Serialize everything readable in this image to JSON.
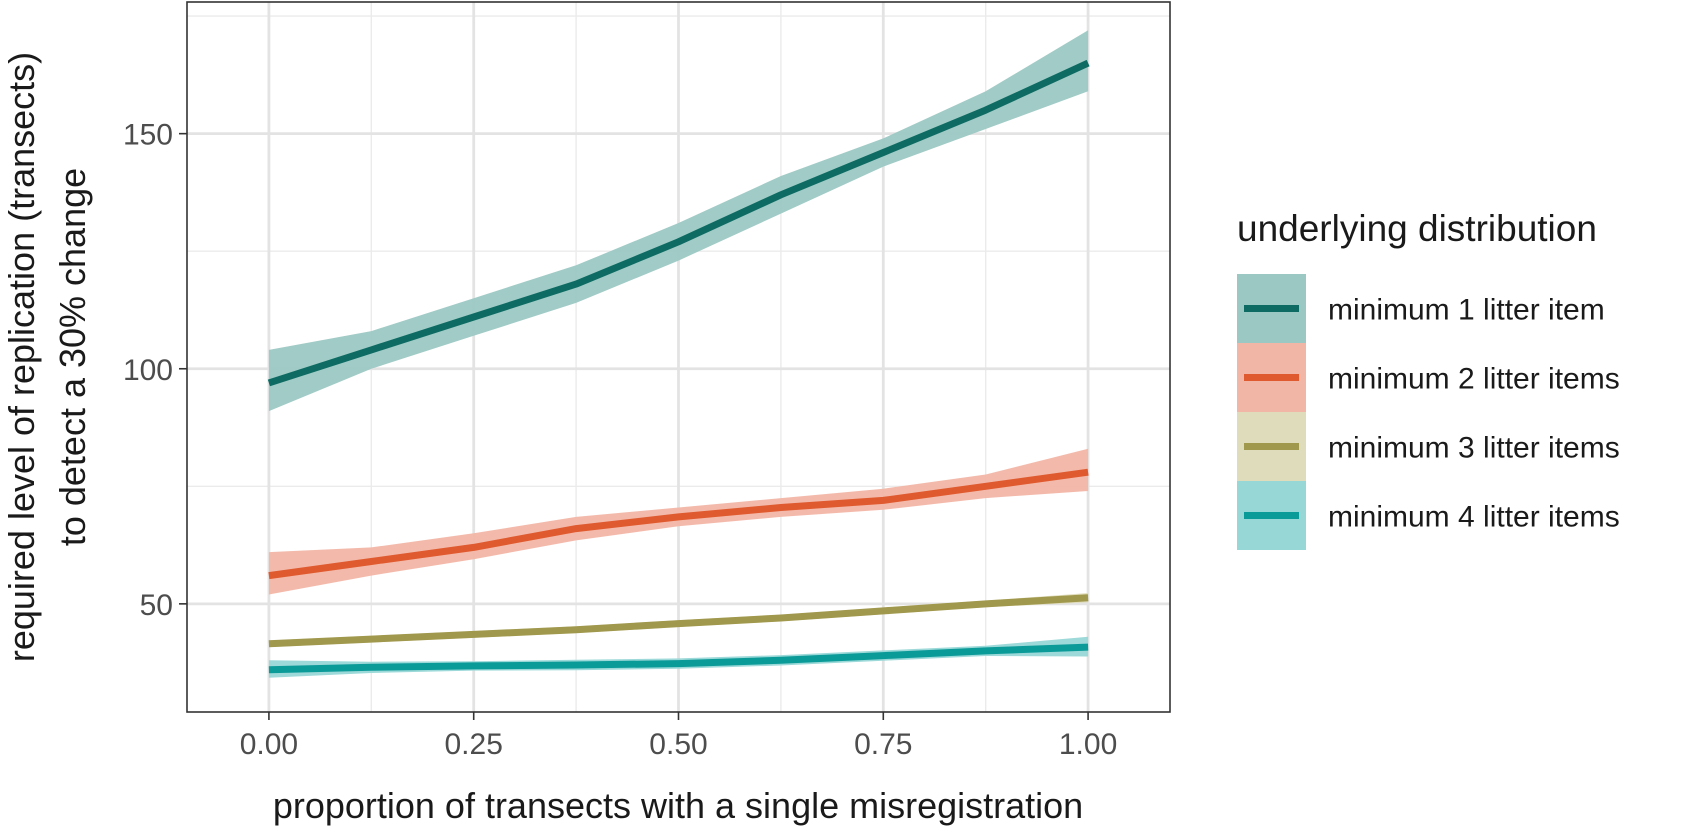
{
  "chart_data": {
    "type": "line",
    "title": "",
    "xlabel": "proportion of transects with a single misregistration",
    "ylabel_line1": "required level of replication (transects)",
    "ylabel_line2": "to detect a 30% change",
    "xlim": [
      -0.1,
      1.1
    ],
    "ylim": [
      27,
      178
    ],
    "x_ticks": [
      0.0,
      0.25,
      0.5,
      0.75,
      1.0
    ],
    "x_tick_labels": [
      "0.00",
      "0.25",
      "0.50",
      "0.75",
      "1.00"
    ],
    "y_ticks": [
      50,
      100,
      150
    ],
    "y_tick_labels": [
      "50",
      "100",
      "150"
    ],
    "grid": true,
    "legend_title": "underlying distribution",
    "legend_position": "right",
    "x": [
      0.0,
      0.125,
      0.25,
      0.375,
      0.5,
      0.625,
      0.75,
      0.875,
      1.0
    ],
    "series": [
      {
        "name": "minimum 1 litter item",
        "color": "#0d6b63",
        "fill": "#9cc8c3",
        "values": [
          97,
          104,
          111,
          118,
          127,
          137,
          146,
          155,
          165
        ],
        "lower": [
          91,
          100,
          107,
          114,
          123,
          133,
          143,
          151,
          159
        ],
        "upper": [
          104,
          108,
          115,
          122,
          131,
          141,
          149,
          159,
          172
        ]
      },
      {
        "name": "minimum 2 litter items",
        "color": "#e05a2f",
        "fill": "#f2b6a6",
        "values": [
          56,
          59,
          62,
          66,
          68.5,
          70.5,
          72,
          75,
          78
        ],
        "lower": [
          52,
          56,
          59.5,
          63.5,
          66.5,
          68.5,
          70,
          72.5,
          74
        ],
        "upper": [
          61,
          62,
          65,
          68.5,
          70.5,
          72.5,
          74.5,
          77.5,
          83
        ]
      },
      {
        "name": "minimum 3 litter items",
        "color": "#a0984c",
        "fill": "#dfdcbb",
        "values": [
          41.5,
          42.5,
          43.5,
          44.5,
          45.8,
          47,
          48.5,
          50,
          51.3
        ],
        "lower": [
          40.8,
          41.8,
          42.8,
          43.8,
          45.1,
          46.3,
          47.8,
          49.3,
          50.3
        ],
        "upper": [
          42.2,
          43.2,
          44.2,
          45.2,
          46.5,
          47.7,
          49.2,
          50.7,
          52.3
        ]
      },
      {
        "name": "minimum 4 litter items",
        "color": "#0a9a98",
        "fill": "#97d7d6",
        "values": [
          36,
          36.5,
          36.8,
          37,
          37.3,
          38,
          39,
          40,
          40.8
        ],
        "lower": [
          34.3,
          35.3,
          35.8,
          35.9,
          36.2,
          36.9,
          37.9,
          38.9,
          38.8
        ],
        "upper": [
          38,
          37.7,
          37.8,
          38.1,
          38.4,
          39.1,
          40.1,
          41.1,
          43
        ]
      }
    ]
  }
}
